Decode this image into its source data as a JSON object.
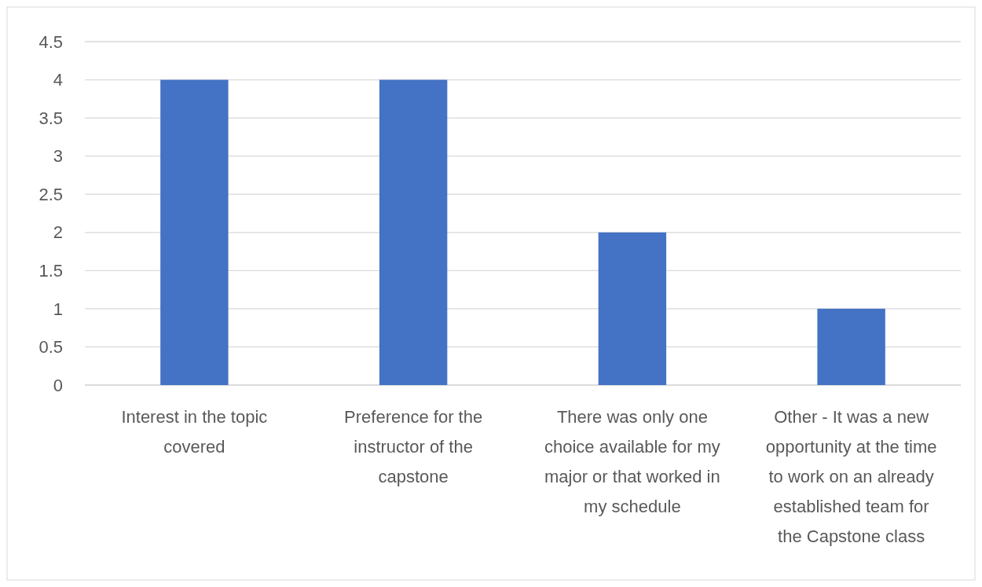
{
  "chart_data": {
    "type": "bar",
    "categories": [
      "Interest in the topic covered",
      "Preference for the instructor of the capstone",
      "There was only one choice available for my major or that worked in my schedule",
      "Other - It was a new opportunity at the time to work on an already established team for the Capstone class"
    ],
    "values": [
      4,
      4,
      2,
      1
    ],
    "color": "#4472c4",
    "ylim": [
      0,
      4.5
    ],
    "yticks": [
      0,
      0.5,
      1,
      1.5,
      2,
      2.5,
      3,
      3.5,
      4,
      4.5
    ],
    "grid": "y"
  }
}
